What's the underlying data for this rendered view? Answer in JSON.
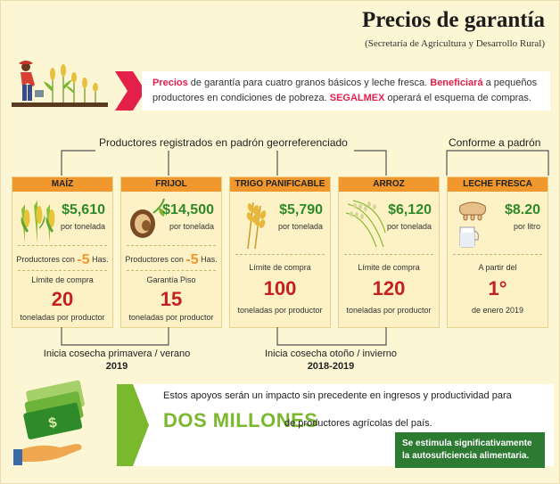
{
  "header": {
    "title": "Precios de garantía",
    "subtitle": "(Secretaría de Agricultura y Desarrollo Rural)"
  },
  "intro": {
    "hl1": "Precios",
    "t1": " de garantía para cuatro granos básicos y leche fresca. ",
    "hl2": "Beneficiará",
    "t2": " a pequeños productores en condiciones de pobreza. ",
    "hl3": "SEGALMEX",
    "t3": " operará el esquema de compras."
  },
  "sections": {
    "registered": "Productores registrados en padrón georreferenciado",
    "conforme": "Conforme a padrón"
  },
  "cards": [
    {
      "name": "MAÍZ",
      "price": "$5,610",
      "unit": "por tonelada",
      "prod_pre": "Productores con",
      "prod_num": "-5",
      "prod_post": "Has.",
      "limit_label": "Límite de compra",
      "limit_value": "20",
      "limit_unit": "toneladas por productor"
    },
    {
      "name": "FRIJOL",
      "price": "$14,500",
      "unit": "por tonelada",
      "prod_pre": "Productores con",
      "prod_num": "-5",
      "prod_post": "Has.",
      "limit_label": "Garantía Piso",
      "limit_value": "15",
      "limit_unit": "toneladas por productor"
    },
    {
      "name": "TRIGO PANIFICABLE",
      "price": "$5,790",
      "unit": "por tonelada",
      "limit_label": "Límite de compra",
      "limit_value": "100",
      "limit_unit": "toneladas por productor"
    },
    {
      "name": "ARROZ",
      "price": "$6,120",
      "unit": "por tonelada",
      "limit_label": "Límite de compra",
      "limit_value": "120",
      "limit_unit": "toneladas por productor"
    },
    {
      "name": "LECHE FRESCA",
      "price": "$8.20",
      "unit": "por litro",
      "limit_label": "A partir del",
      "limit_value": "1°",
      "limit_unit": "de enero 2019"
    }
  ],
  "harvest": {
    "pv_label": "Inicia cosecha primavera / verano",
    "pv_year": "2019",
    "oi_label": "Inicia cosecha otoño / invierno",
    "oi_year": "2018-2019"
  },
  "impact": {
    "text": "Estos apoyos serán un impacto sin precedente en ingresos y productividad para",
    "big": "DOS MILLONES",
    "rest": "de productores agrícolas del país.",
    "box_line1": "Se estimula significativamente",
    "box_line2": "la autosuficiencia alimentaria."
  },
  "colors": {
    "accent_red": "#e2204a",
    "orange": "#f0982e",
    "green_price": "#2f8a2a",
    "limit_red": "#c42020",
    "lime": "#7ab82e",
    "dark_green": "#2d7a32"
  },
  "icons": [
    "farmer-icon",
    "corn-icon",
    "bean-icon",
    "wheat-icon",
    "rice-icon",
    "milk-icon",
    "money-hand-icon"
  ]
}
